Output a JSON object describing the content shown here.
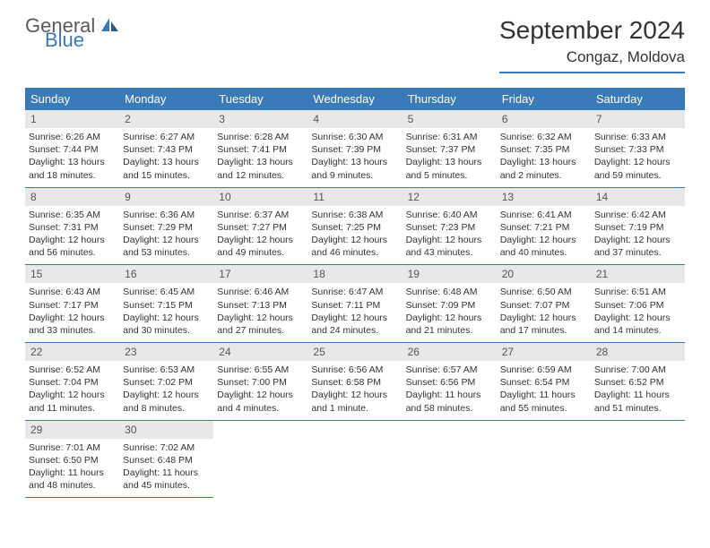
{
  "brand": {
    "part1": "General",
    "part2": "Blue"
  },
  "title": "September 2024",
  "location": "Congaz, Moldova",
  "dayHeaders": [
    "Sunday",
    "Monday",
    "Tuesday",
    "Wednesday",
    "Thursday",
    "Friday",
    "Saturday"
  ],
  "colors": {
    "accent": "#3a7ab8",
    "header_bg": "#3a7ab8",
    "header_text": "#ffffff",
    "daynum_bg": "#e8e8e8",
    "text": "#333333"
  },
  "days": [
    {
      "n": "1",
      "sunrise": "Sunrise: 6:26 AM",
      "sunset": "Sunset: 7:44 PM",
      "day1": "Daylight: 13 hours",
      "day2": "and 18 minutes."
    },
    {
      "n": "2",
      "sunrise": "Sunrise: 6:27 AM",
      "sunset": "Sunset: 7:43 PM",
      "day1": "Daylight: 13 hours",
      "day2": "and 15 minutes."
    },
    {
      "n": "3",
      "sunrise": "Sunrise: 6:28 AM",
      "sunset": "Sunset: 7:41 PM",
      "day1": "Daylight: 13 hours",
      "day2": "and 12 minutes."
    },
    {
      "n": "4",
      "sunrise": "Sunrise: 6:30 AM",
      "sunset": "Sunset: 7:39 PM",
      "day1": "Daylight: 13 hours",
      "day2": "and 9 minutes."
    },
    {
      "n": "5",
      "sunrise": "Sunrise: 6:31 AM",
      "sunset": "Sunset: 7:37 PM",
      "day1": "Daylight: 13 hours",
      "day2": "and 5 minutes."
    },
    {
      "n": "6",
      "sunrise": "Sunrise: 6:32 AM",
      "sunset": "Sunset: 7:35 PM",
      "day1": "Daylight: 13 hours",
      "day2": "and 2 minutes."
    },
    {
      "n": "7",
      "sunrise": "Sunrise: 6:33 AM",
      "sunset": "Sunset: 7:33 PM",
      "day1": "Daylight: 12 hours",
      "day2": "and 59 minutes."
    },
    {
      "n": "8",
      "sunrise": "Sunrise: 6:35 AM",
      "sunset": "Sunset: 7:31 PM",
      "day1": "Daylight: 12 hours",
      "day2": "and 56 minutes."
    },
    {
      "n": "9",
      "sunrise": "Sunrise: 6:36 AM",
      "sunset": "Sunset: 7:29 PM",
      "day1": "Daylight: 12 hours",
      "day2": "and 53 minutes."
    },
    {
      "n": "10",
      "sunrise": "Sunrise: 6:37 AM",
      "sunset": "Sunset: 7:27 PM",
      "day1": "Daylight: 12 hours",
      "day2": "and 49 minutes."
    },
    {
      "n": "11",
      "sunrise": "Sunrise: 6:38 AM",
      "sunset": "Sunset: 7:25 PM",
      "day1": "Daylight: 12 hours",
      "day2": "and 46 minutes."
    },
    {
      "n": "12",
      "sunrise": "Sunrise: 6:40 AM",
      "sunset": "Sunset: 7:23 PM",
      "day1": "Daylight: 12 hours",
      "day2": "and 43 minutes."
    },
    {
      "n": "13",
      "sunrise": "Sunrise: 6:41 AM",
      "sunset": "Sunset: 7:21 PM",
      "day1": "Daylight: 12 hours",
      "day2": "and 40 minutes."
    },
    {
      "n": "14",
      "sunrise": "Sunrise: 6:42 AM",
      "sunset": "Sunset: 7:19 PM",
      "day1": "Daylight: 12 hours",
      "day2": "and 37 minutes."
    },
    {
      "n": "15",
      "sunrise": "Sunrise: 6:43 AM",
      "sunset": "Sunset: 7:17 PM",
      "day1": "Daylight: 12 hours",
      "day2": "and 33 minutes."
    },
    {
      "n": "16",
      "sunrise": "Sunrise: 6:45 AM",
      "sunset": "Sunset: 7:15 PM",
      "day1": "Daylight: 12 hours",
      "day2": "and 30 minutes."
    },
    {
      "n": "17",
      "sunrise": "Sunrise: 6:46 AM",
      "sunset": "Sunset: 7:13 PM",
      "day1": "Daylight: 12 hours",
      "day2": "and 27 minutes."
    },
    {
      "n": "18",
      "sunrise": "Sunrise: 6:47 AM",
      "sunset": "Sunset: 7:11 PM",
      "day1": "Daylight: 12 hours",
      "day2": "and 24 minutes."
    },
    {
      "n": "19",
      "sunrise": "Sunrise: 6:48 AM",
      "sunset": "Sunset: 7:09 PM",
      "day1": "Daylight: 12 hours",
      "day2": "and 21 minutes."
    },
    {
      "n": "20",
      "sunrise": "Sunrise: 6:50 AM",
      "sunset": "Sunset: 7:07 PM",
      "day1": "Daylight: 12 hours",
      "day2": "and 17 minutes."
    },
    {
      "n": "21",
      "sunrise": "Sunrise: 6:51 AM",
      "sunset": "Sunset: 7:06 PM",
      "day1": "Daylight: 12 hours",
      "day2": "and 14 minutes."
    },
    {
      "n": "22",
      "sunrise": "Sunrise: 6:52 AM",
      "sunset": "Sunset: 7:04 PM",
      "day1": "Daylight: 12 hours",
      "day2": "and 11 minutes."
    },
    {
      "n": "23",
      "sunrise": "Sunrise: 6:53 AM",
      "sunset": "Sunset: 7:02 PM",
      "day1": "Daylight: 12 hours",
      "day2": "and 8 minutes."
    },
    {
      "n": "24",
      "sunrise": "Sunrise: 6:55 AM",
      "sunset": "Sunset: 7:00 PM",
      "day1": "Daylight: 12 hours",
      "day2": "and 4 minutes."
    },
    {
      "n": "25",
      "sunrise": "Sunrise: 6:56 AM",
      "sunset": "Sunset: 6:58 PM",
      "day1": "Daylight: 12 hours",
      "day2": "and 1 minute."
    },
    {
      "n": "26",
      "sunrise": "Sunrise: 6:57 AM",
      "sunset": "Sunset: 6:56 PM",
      "day1": "Daylight: 11 hours",
      "day2": "and 58 minutes."
    },
    {
      "n": "27",
      "sunrise": "Sunrise: 6:59 AM",
      "sunset": "Sunset: 6:54 PM",
      "day1": "Daylight: 11 hours",
      "day2": "and 55 minutes."
    },
    {
      "n": "28",
      "sunrise": "Sunrise: 7:00 AM",
      "sunset": "Sunset: 6:52 PM",
      "day1": "Daylight: 11 hours",
      "day2": "and 51 minutes."
    },
    {
      "n": "29",
      "sunrise": "Sunrise: 7:01 AM",
      "sunset": "Sunset: 6:50 PM",
      "day1": "Daylight: 11 hours",
      "day2": "and 48 minutes."
    },
    {
      "n": "30",
      "sunrise": "Sunrise: 7:02 AM",
      "sunset": "Sunset: 6:48 PM",
      "day1": "Daylight: 11 hours",
      "day2": "and 45 minutes."
    }
  ]
}
